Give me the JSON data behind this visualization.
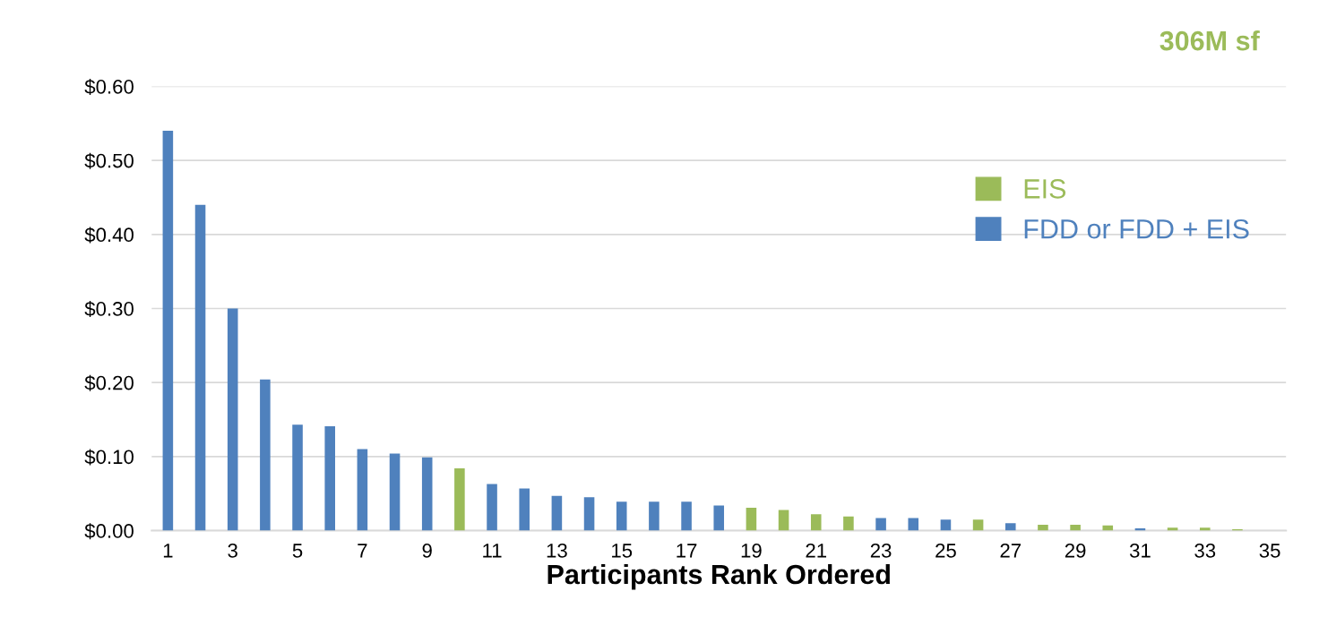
{
  "chart_data": {
    "type": "bar",
    "xlabel": "Participants Rank Ordered",
    "annotations": [
      "306M sf"
    ],
    "categories": [
      "1",
      null,
      "3",
      null,
      "5",
      null,
      "7",
      null,
      "9",
      null,
      "11",
      null,
      "13",
      null,
      "15",
      null,
      "17",
      null,
      "19",
      null,
      "21",
      null,
      "23",
      null,
      "25",
      null,
      "27",
      null,
      "29",
      null,
      "31",
      null,
      "33",
      null,
      "35"
    ],
    "series": [
      {
        "name": "EIS",
        "color": "#9bbb59",
        "values": [
          null,
          null,
          null,
          null,
          null,
          null,
          null,
          null,
          null,
          0.084,
          null,
          null,
          null,
          null,
          null,
          null,
          null,
          null,
          0.031,
          0.028,
          0.022,
          0.019,
          null,
          null,
          null,
          0.015,
          null,
          0.008,
          0.008,
          0.007,
          null,
          0.004,
          0.004,
          0.002,
          null
        ]
      },
      {
        "name": "FDD or FDD + EIS",
        "color": "#4f81bd",
        "values": [
          0.54,
          0.44,
          0.3,
          0.204,
          0.143,
          0.141,
          0.11,
          0.104,
          0.099,
          null,
          0.063,
          0.057,
          0.047,
          0.045,
          0.039,
          0.039,
          0.039,
          0.034,
          null,
          null,
          null,
          null,
          0.017,
          0.017,
          0.015,
          null,
          0.01,
          null,
          null,
          null,
          0.003,
          null,
          null,
          null,
          null
        ]
      }
    ],
    "ylim": [
      0,
      0.6
    ],
    "yticks": [
      {
        "value": 0,
        "label": "$0.00"
      },
      {
        "value": 0.1,
        "label": "$0.10"
      },
      {
        "value": 0.2,
        "label": "$0.20"
      },
      {
        "value": 0.3,
        "label": "$0.30"
      },
      {
        "value": 0.4,
        "label": "$0.40"
      },
      {
        "value": 0.5,
        "label": "$0.50"
      },
      {
        "value": 0.6,
        "label": "$0.60"
      }
    ],
    "grid": "y",
    "legend": "right"
  }
}
